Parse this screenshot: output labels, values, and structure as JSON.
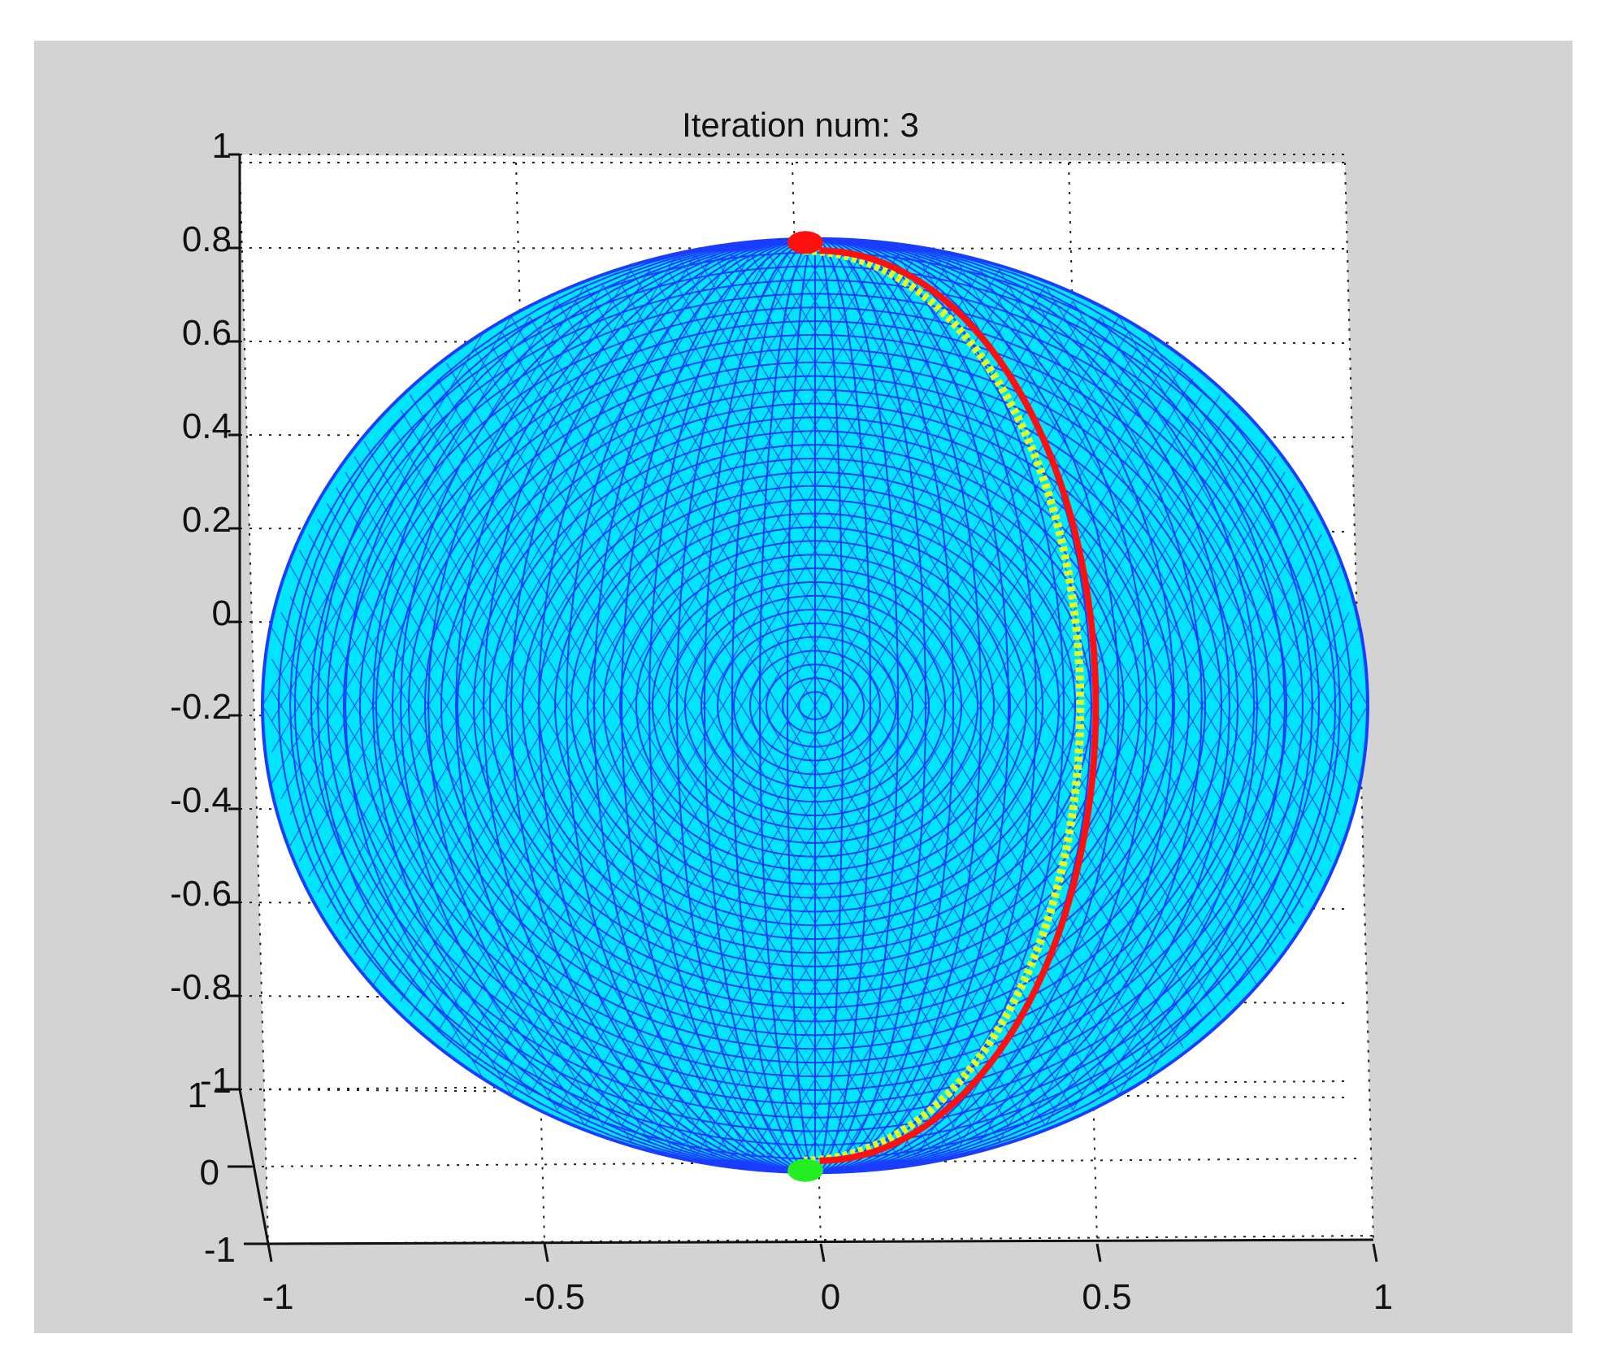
{
  "chart_data": {
    "type": "3d-surface-mesh",
    "title": "Iteration num: 3",
    "xlabel": "",
    "ylabel": "",
    "zlabel": "",
    "grid": true,
    "view": "near top-down, slight tilt",
    "xlim": [
      -1,
      1
    ],
    "ylim": [
      -1,
      1
    ],
    "zlim": [
      -1,
      1
    ],
    "x_ticks": [
      "-1",
      "-0.5",
      "0",
      "0.5",
      "1"
    ],
    "y_ticks": [
      "1",
      "0",
      "-1"
    ],
    "z_ticks": [
      "1",
      "0.8",
      "0.6",
      "0.4",
      "0.2",
      "0",
      "-0.2",
      "-0.4",
      "-0.6",
      "-0.8",
      "-1"
    ],
    "surface": {
      "shape": "unit sphere, triangulated",
      "face_color": "#00e5ff",
      "edge_color": "#1a3cff"
    },
    "path": {
      "description": "great-circle arc from start point to end point",
      "start": [
        0,
        0,
        1
      ],
      "end": [
        0,
        0,
        -1
      ],
      "via": [
        0.5,
        0,
        0
      ],
      "line_color": "#ff1010",
      "trail_color": "#e0ff20"
    },
    "markers": [
      {
        "position": [
          0,
          0,
          1
        ],
        "color": "#ff1010"
      },
      {
        "position": [
          0,
          0,
          -1
        ],
        "color": "#22ee22"
      }
    ]
  },
  "colors": {
    "figure_background": "#d3d3d3",
    "axes_background": "#ffffff",
    "axis_line": "#111111"
  }
}
